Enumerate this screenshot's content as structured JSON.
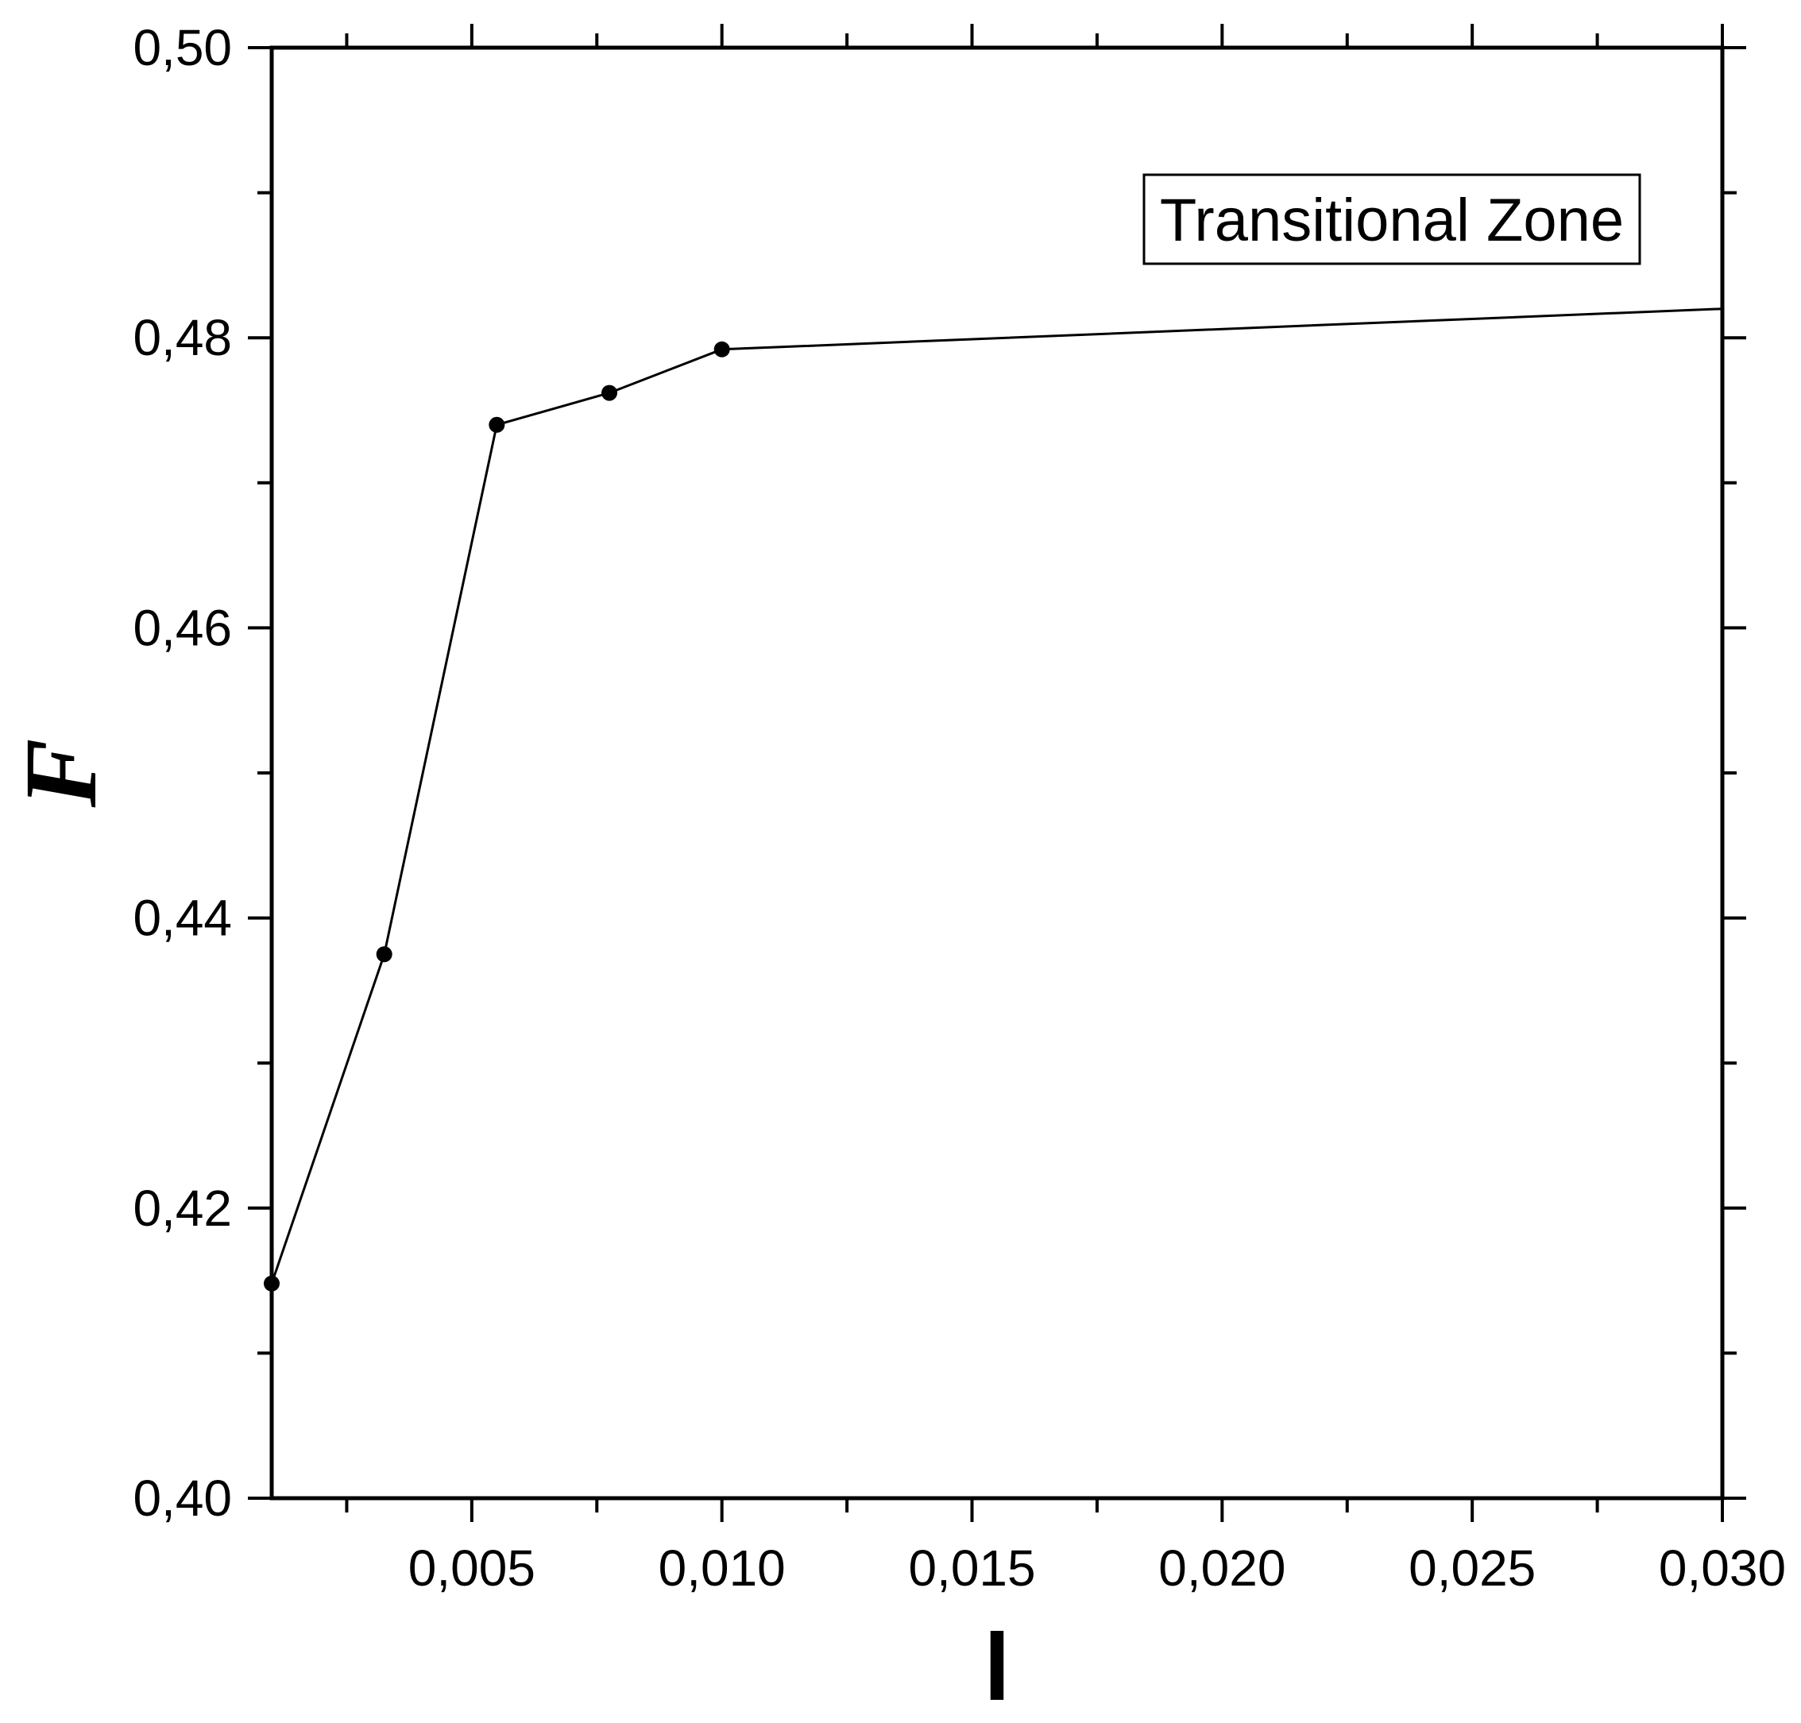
{
  "chart_data": {
    "type": "line",
    "title": "",
    "xlabel": "l",
    "ylabel": "F",
    "xlim": [
      0.001,
      0.03
    ],
    "ylim": [
      0.4,
      0.5
    ],
    "x_ticks": [
      0.005,
      0.01,
      0.015,
      0.02,
      0.025,
      0.03
    ],
    "x_tick_labels": [
      "0,005",
      "0,010",
      "0,015",
      "0,020",
      "0,025",
      "0,030"
    ],
    "y_ticks": [
      0.4,
      0.42,
      0.44,
      0.46,
      0.48,
      0.5
    ],
    "y_tick_labels": [
      "0,40",
      "0,42",
      "0,44",
      "0,46",
      "0,48",
      "0,50"
    ],
    "grid": false,
    "annotation": "Transitional Zone",
    "series": [
      {
        "x": [
          0.001,
          0.00325,
          0.0055,
          0.00775,
          0.01,
          0.03
        ],
        "y": [
          0.4148,
          0.4375,
          0.474,
          0.4762,
          0.4792,
          0.482
        ],
        "markers": [
          true,
          true,
          true,
          true,
          true,
          false
        ]
      }
    ],
    "colors": {
      "line": "#000000",
      "marker": "#000000",
      "background": "#ffffff"
    }
  }
}
